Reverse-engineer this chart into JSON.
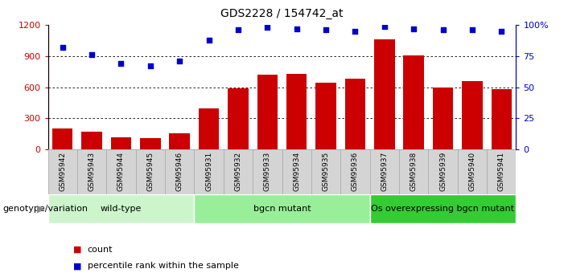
{
  "title": "GDS2228 / 154742_at",
  "samples": [
    "GSM95942",
    "GSM95943",
    "GSM95944",
    "GSM95945",
    "GSM95946",
    "GSM95931",
    "GSM95932",
    "GSM95933",
    "GSM95934",
    "GSM95935",
    "GSM95936",
    "GSM95937",
    "GSM95938",
    "GSM95939",
    "GSM95940",
    "GSM95941"
  ],
  "counts": [
    200,
    170,
    120,
    110,
    160,
    400,
    590,
    720,
    730,
    640,
    680,
    1060,
    910,
    600,
    660,
    580
  ],
  "percentiles": [
    82,
    76,
    69,
    67,
    71,
    88,
    96,
    98,
    97,
    96,
    95,
    99,
    97,
    96,
    96,
    95
  ],
  "groups": [
    {
      "label": "wild-type",
      "start": 0,
      "end": 4,
      "color": "#ccf5cc"
    },
    {
      "label": "bgcn mutant",
      "start": 5,
      "end": 10,
      "color": "#99ee99"
    },
    {
      "label": "Os overexpressing bgcn mutant",
      "start": 11,
      "end": 15,
      "color": "#33cc33"
    }
  ],
  "bar_color": "#cc0000",
  "dot_color": "#0000cc",
  "ylim_left": [
    0,
    1200
  ],
  "ylim_right": [
    0,
    100
  ],
  "yticks_left": [
    0,
    300,
    600,
    900,
    1200
  ],
  "yticks_right": [
    0,
    25,
    50,
    75,
    100
  ],
  "legend_items": [
    {
      "label": "count",
      "color": "#cc0000"
    },
    {
      "label": "percentile rank within the sample",
      "color": "#0000cc"
    }
  ]
}
